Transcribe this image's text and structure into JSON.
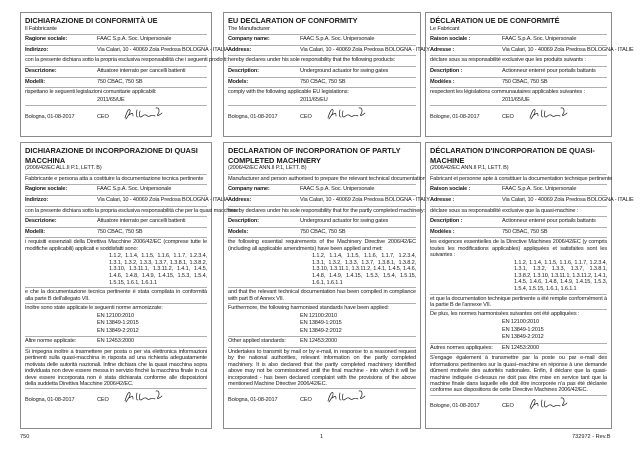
{
  "panels": [
    {
      "id": "it-conformity",
      "title": "DICHIARAZIONE DI CONFORMITÀ UE",
      "rows": [
        {
          "t": "line",
          "text": "Il Fabbricante"
        },
        {
          "t": "field",
          "label": "Ragione sociale:",
          "value": "FAAC S.p.A. Soc. Unipersonale"
        },
        {
          "t": "field",
          "label": "Indirizzo:",
          "value": "Via Calari, 10 - 40069 Zola Predosa BOLOGNA - ITALIA"
        },
        {
          "t": "line",
          "text": "con la presente dichiara sotto la propria esclusiva responsabilità che i seguenti prodotti:"
        },
        {
          "t": "field",
          "label": "Descrizione:",
          "value": "Attuatore interrato per cancelli battenti"
        },
        {
          "t": "field",
          "label": "Modelli:",
          "value": "750 CBAC, 750 SB"
        },
        {
          "t": "line",
          "text": "rispettano le seguenti legislazioni comunitarie applicabili:"
        },
        {
          "t": "ind",
          "text": "2011/65/UE"
        },
        {
          "t": "sig",
          "place": "Bologna, 01-08-2017",
          "role": "CEO"
        }
      ]
    },
    {
      "id": "en-conformity",
      "title": "EU DECLARATION OF CONFORMITY",
      "rows": [
        {
          "t": "line",
          "text": "The Manufacturer"
        },
        {
          "t": "field",
          "label": "Company name:",
          "value": "FAAC S.p.A. Soc. Unipersonale"
        },
        {
          "t": "field",
          "label": "Address:",
          "value": "Via Calari, 10 - 40069 Zola Predosa BOLOGNA - ITALY"
        },
        {
          "t": "line",
          "text": "hereby declares under his sole responsibility that the following products:"
        },
        {
          "t": "field",
          "label": "Description:",
          "value": "Underground actuator for swing gates"
        },
        {
          "t": "field",
          "label": "Models:",
          "value": "750 CBAC, 750 SB"
        },
        {
          "t": "line",
          "text": "comply with the following applicable EU legislations:"
        },
        {
          "t": "ind",
          "text": "2011/65/EU"
        },
        {
          "t": "sig",
          "place": "Bologna, 01-08-2017",
          "role": "CEO"
        }
      ]
    },
    {
      "id": "fr-conformity",
      "title": "DÉCLARATION UE DE CONFORMITÉ",
      "rows": [
        {
          "t": "line",
          "text": "Le Fabricant"
        },
        {
          "t": "field",
          "label": "Raison sociale :",
          "value": "FAAC S.p.A. Soc. Unipersonale"
        },
        {
          "t": "field",
          "label": "Adresse :",
          "value": "Via Calari, 10 - 40069 Zola Predosa BOLOGNA - ITALIE"
        },
        {
          "t": "line",
          "text": "déclare sous sa responsabilité exclusive que les produits suivants :"
        },
        {
          "t": "field",
          "label": "Description :",
          "value": "Actionneur enterré pour portails battants"
        },
        {
          "t": "field",
          "label": "Modèles :",
          "value": "750 CBAC, 750 SB"
        },
        {
          "t": "line",
          "text": "respectent les législations communautaires applicables suivantes :"
        },
        {
          "t": "ind",
          "text": "2011/65/UE"
        },
        {
          "t": "sig",
          "place": "Bologne, 01-08-2017",
          "role": "CEO"
        }
      ]
    },
    {
      "id": "it-incorporation",
      "title": "DICHIARAZIONE DI INCORPORAZIONE DI QUASI MACCHINA",
      "rows": [
        {
          "t": "line",
          "text": "(2006/42/EC ALL.II P.1, LETT. B)"
        },
        {
          "t": "line",
          "text": "Fabbricante e persona atta a costituire la documentazione tecnica pertinente"
        },
        {
          "t": "field",
          "label": "Ragione sociale:",
          "value": "FAAC S.p.A. Soc. Unipersonale"
        },
        {
          "t": "field",
          "label": "Indirizzo:",
          "value": "Via Calari, 10 - 40069 Zola Predosa BOLOGNA - ITALIA"
        },
        {
          "t": "line",
          "text": "con la presente dichiara sotto la propria esclusiva responsabilità che per la quasi macchina:"
        },
        {
          "t": "field",
          "label": "Descrizione:",
          "value": "Attuatore interrato per cancelli battenti"
        },
        {
          "t": "field",
          "label": "Modelli:",
          "value": "750 CBAC, 750 SB"
        },
        {
          "t": "para",
          "text": "i requisiti essenziali della Direttiva Macchine 2006/42/EC (comprese tutte le modifiche applicabili) applicati e soddisfatti sono:"
        },
        {
          "t": "ind2",
          "text": "1.1.2, 1.1.4, 1.1.5, 1.1.6, 1.1.7, 1.2.3.4, 1.3.1, 1.3.2, 1.3.3, 1.3.7, 1.3.8.1, 1.3.8.2, 1.3.10, 1.3.11.1, 1.3.11.2, 1.4.1, 1.4.5, 1.4.6, 1.4.8, 1.4.9, 1.4.15, 1.5.3, 1.5.4, 1.5.15, 1.6.1, 1.6.1.1"
        },
        {
          "t": "para",
          "text": "e che la documentazione tecnica pertinente è stata compilata in conformità alla parte B dell'allegato VII."
        },
        {
          "t": "line",
          "text": "Inoltre sono state applicate le seguenti norme armonizzate:"
        },
        {
          "t": "ind",
          "text": "EN 12100:2010"
        },
        {
          "t": "ind",
          "text": "EN 13849-1:2015"
        },
        {
          "t": "ind",
          "text": "EN 13849-2:2012"
        },
        {
          "t": "fieldp",
          "label": "Altre norme applicate:",
          "value": "EN 12453:2000"
        },
        {
          "t": "para",
          "text": "Si impegna inoltre a trasmettere per posta o per via elettronica informazioni pertinenti sulla quasi-macchina in risposta ad una richiesta adeguatamente motivata delle autorità nazionali.    Infine dichiara che la quasi macchina sopra individuata non deve essere messa in servizio finché la macchina finale in cui deve essere incorporata non è stata dichiarata conforme alle disposizioni della suddetta Direttiva Macchine 2006/42/EC."
        },
        {
          "t": "sig",
          "place": "Bologna, 01-08-2017",
          "role": "CEO"
        }
      ]
    },
    {
      "id": "en-incorporation",
      "title": "DECLARATION OF INCORPORATION OF PARTLY COMPLETED MACHINERY",
      "rows": [
        {
          "t": "line",
          "text": "(2006/42/EC ANN.II P.1, LETT. B)"
        },
        {
          "t": "line",
          "text": "Manufacturer and person authorised to prepare the relevant technical documentation"
        },
        {
          "t": "field",
          "label": "Company name:",
          "value": "FAAC S.p.A. Soc. Unipersonale"
        },
        {
          "t": "field",
          "label": "Address:",
          "value": "Via Calari, 10 - 40069 Zola Predosa BOLOGNA - ITALY"
        },
        {
          "t": "line",
          "text": "hereby declares under his sole responsibility that for the partly completed machinery:"
        },
        {
          "t": "field",
          "label": "Description:",
          "value": "Underground actuator for swing gates"
        },
        {
          "t": "field",
          "label": "Models:",
          "value": "750 CBAC, 750 SB"
        },
        {
          "t": "para",
          "text": "the following essential requirements of the Machinery Directive 2006/42/EC (including all applicable amendments) have been applied and met:"
        },
        {
          "t": "ind2",
          "text": "1.1.2, 1.1.4, 1.1.5, 1.1.6, 1.1.7, 1.2.3.4, 1.3.1, 1.3.2, 1.3.3, 1.3.7, 1.3.8.1, 1.3.8.2, 1.3.10, 1.3.11.1, 1.3.11.2, 1.4.1, 1.4.5, 1.4.6, 1.4.8, 1.4.9, 1.4.15, 1.5.3, 1.5.4, 1.5.15, 1.6.1, 1.6.1.1"
        },
        {
          "t": "para",
          "text": "and that the relevant technical documentation has been compiled in compliance with part B of Annex VII."
        },
        {
          "t": "line",
          "text": "Furthermore, the following harmonised standards have been applied:"
        },
        {
          "t": "ind",
          "text": "EN 12100:2010"
        },
        {
          "t": "ind",
          "text": "EN 13849-1:2015"
        },
        {
          "t": "ind",
          "text": "EN 13849-2:2012"
        },
        {
          "t": "fieldp",
          "label": "Other applied standards:",
          "value": "EN 12453:2000"
        },
        {
          "t": "para",
          "text": "Undertakes to transmit by mail or by e-mail, in response to a reasoned request by the national authorities, relevant information on the partly completed machinery.    It is also declared that the partly completed machinery identified above may not be commissioned until the final machine - into which it will be incorporated - has been declared complaint with the provisions of the above mentioned Machine Directive 2006/42/EC."
        },
        {
          "t": "sig",
          "place": "Bologna, 01-08-2017",
          "role": "CEO"
        }
      ]
    },
    {
      "id": "fr-incorporation",
      "title": "DÉCLARATION D'INCORPORATION DE QUASI-MACHINE",
      "rows": [
        {
          "t": "line",
          "text": "(2006/42/EC ANN.II P.1, LETT. B)"
        },
        {
          "t": "line",
          "text": "Fabricant et personne apte à constituer la documentation technique pertinente"
        },
        {
          "t": "field",
          "label": "Raison sociale :",
          "value": "FAAC S.p.A. Soc. Unipersonale"
        },
        {
          "t": "field",
          "label": "Adresse :",
          "value": "Via Calari, 10 - 40069 Zola Predosa BOLOGNA - ITALIE"
        },
        {
          "t": "line",
          "text": "déclare  sous sa responsabilité exclusive que la quasi-machine :"
        },
        {
          "t": "field",
          "label": "Description :",
          "value": "Actionneur enterré pour portails battants"
        },
        {
          "t": "field",
          "label": "Modèles :",
          "value": "750 CBAC, 750 SB"
        },
        {
          "t": "para",
          "text": "les exigences essentielles de la Directive Machines 2006/42/EC (y compris toutes les modifications applicables) appliquées et satisfaites sont les suivantes :"
        },
        {
          "t": "ind2",
          "text": "1.1.2, 1.1.4, 1.1.5, 1.1.6, 1.1.7, 1.2.3.4, 1.3.1, 1.3.2, 1.3.3, 1.3.7, 1.3.8.1, 1.3.8.2, 1.3.10, 1.3.11.1, 1.3.11.2, 1.4.1, 1.4.5, 1.4.6, 1.4.8, 1.4.9, 1.4.15, 1.5.3, 1.5.4, 1.5.15, 1.6.1, 1.6.1.1"
        },
        {
          "t": "para",
          "text": "et que la documentation technique pertinente a été remplie conformément à la partie B de l'annexe VII."
        },
        {
          "t": "line",
          "text": "De plus, les normes harmonisées suivantes ont été appliquées :"
        },
        {
          "t": "ind",
          "text": "EN 12100:2010"
        },
        {
          "t": "ind",
          "text": "EN 13849-1:2015"
        },
        {
          "t": "ind",
          "text": "EN 13849-2:2012"
        },
        {
          "t": "fieldp",
          "label": "Autres normes appliquées:",
          "value": "EN 12453:2000"
        },
        {
          "t": "para",
          "text": "S'engage également à transmettre par la poste ou par e-mail des informations pertinentes sur la quasi–machine en réponse à une demande dûment motivée des autorités nationales.    Enfin, il déclare que la quasi-machine indiquée ci-dessus ne doit pas être mise en service tant que la machine finale dans laquelle elle doit être incorporée n'a pas été déclarée conforme aux dispositions de cette Directive Machines 2006/42/EC."
        },
        {
          "t": "sig",
          "place": "Bologne, 01-08-2017",
          "role": "CEO"
        }
      ]
    }
  ],
  "footer": {
    "left": "750",
    "center": "1",
    "right": "732972 - Rev.B"
  }
}
